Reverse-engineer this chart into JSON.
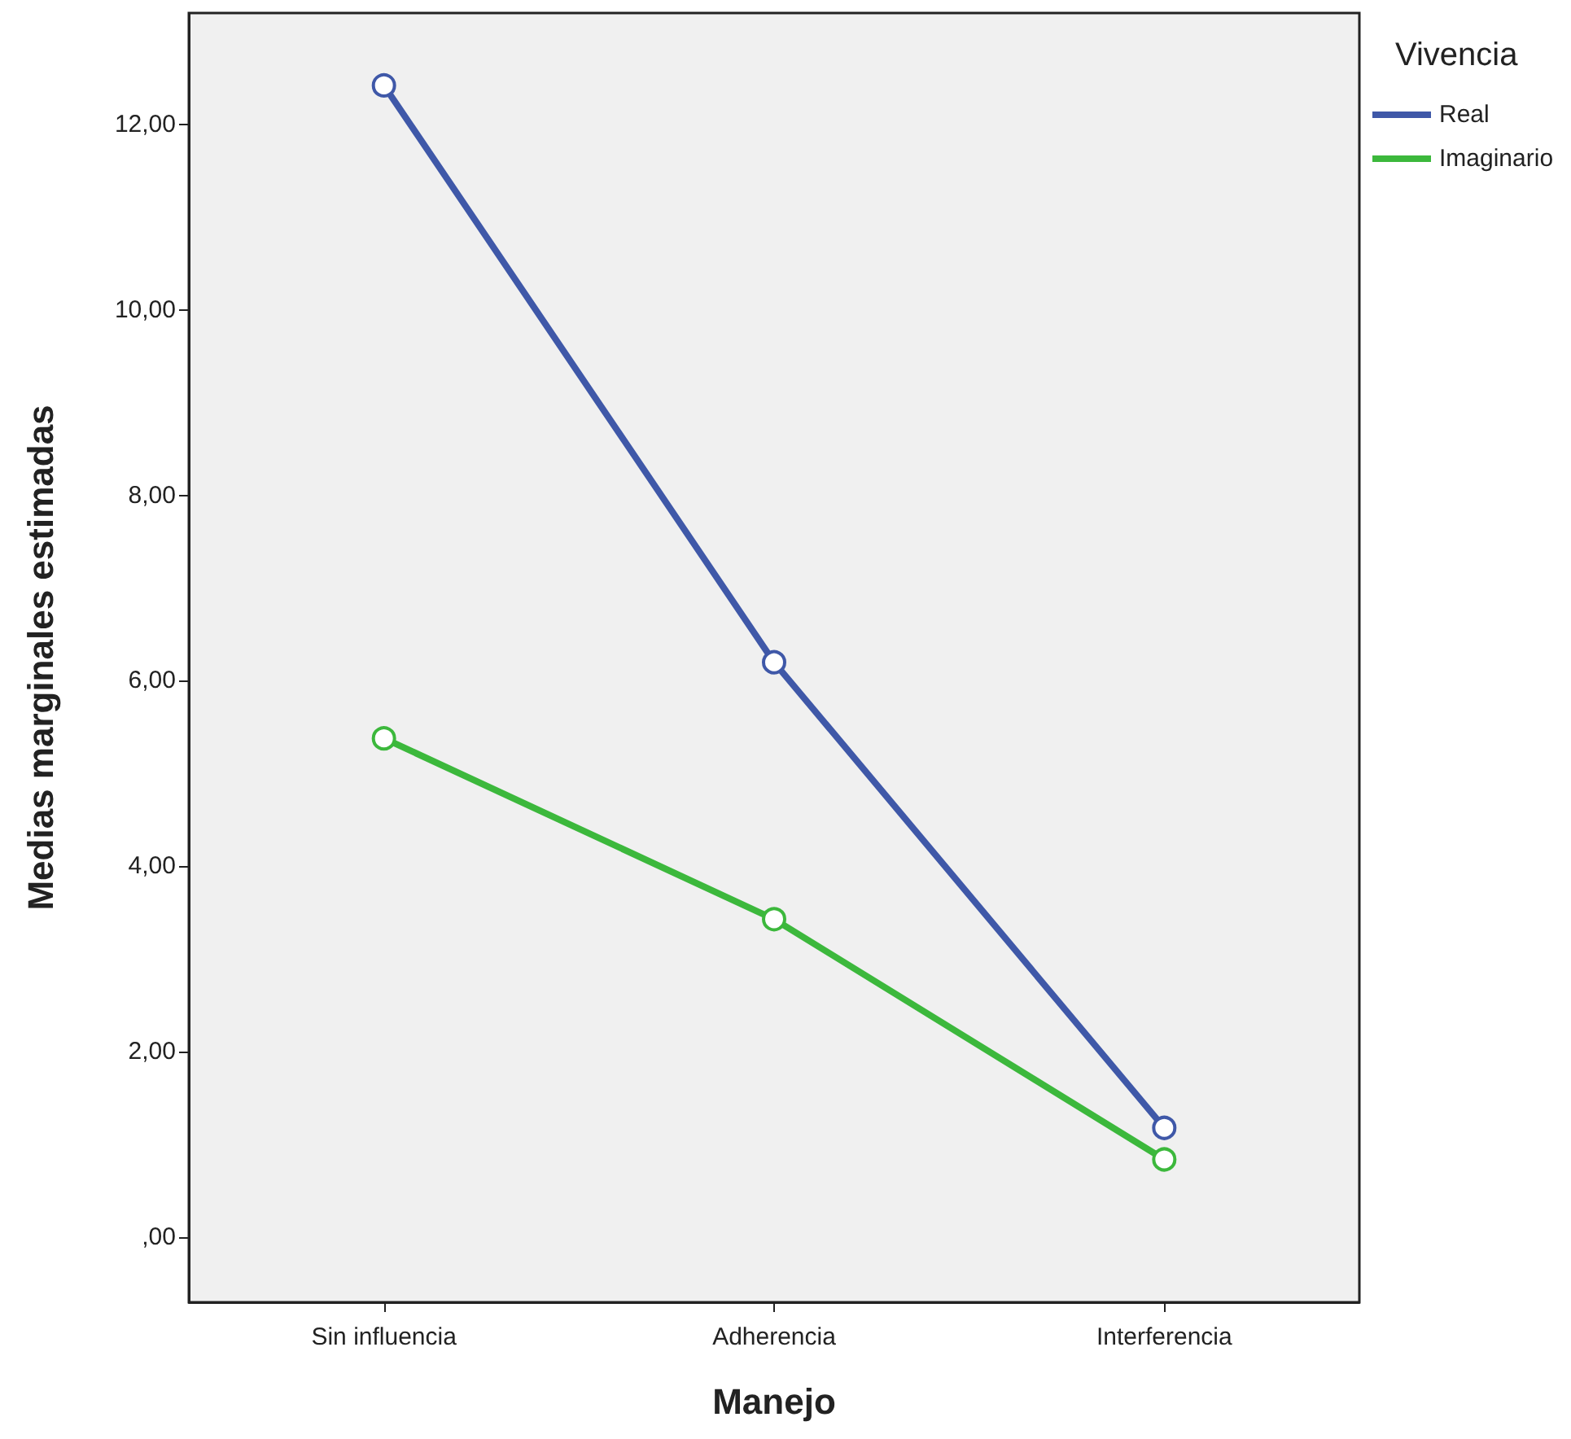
{
  "chart_data": {
    "type": "line",
    "xlabel": "Manejo",
    "ylabel": "Medias marginales estimadas",
    "legend_title": "Vivencia",
    "categories": [
      "Sin influencia",
      "Adherencia",
      "Interferencia"
    ],
    "series": [
      {
        "name": "Real",
        "color": "#3f58a8",
        "values": [
          12.42,
          6.2,
          1.18
        ]
      },
      {
        "name": "Imaginario",
        "color": "#3cb83c",
        "values": [
          5.38,
          3.43,
          0.84
        ]
      }
    ],
    "ylim": [
      -0.7,
      13.2
    ],
    "yticks": [
      {
        "value": 0,
        "label": ",00"
      },
      {
        "value": 2,
        "label": "2,00"
      },
      {
        "value": 4,
        "label": "4,00"
      },
      {
        "value": 6,
        "label": "6,00"
      },
      {
        "value": 8,
        "label": "8,00"
      },
      {
        "value": 10,
        "label": "10,00"
      },
      {
        "value": 12,
        "label": "12,00"
      }
    ],
    "marker": "circle",
    "line_style": "solid",
    "grid": false,
    "legend": "top right"
  }
}
